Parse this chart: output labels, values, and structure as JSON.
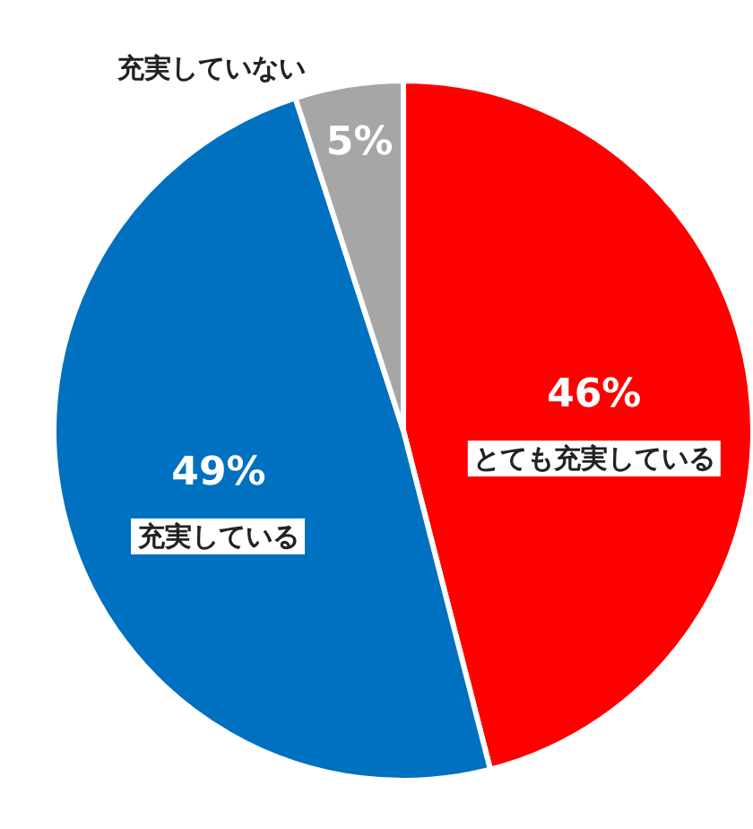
{
  "chart_data": {
    "type": "pie",
    "categories": [
      "とても充実している",
      "充実している",
      "充実していない"
    ],
    "values": [
      46,
      49,
      5
    ],
    "colors": [
      "#ff0000",
      "#0070c0",
      "#a6a6a6"
    ],
    "value_labels": [
      "46%",
      "49%",
      "5%"
    ]
  }
}
